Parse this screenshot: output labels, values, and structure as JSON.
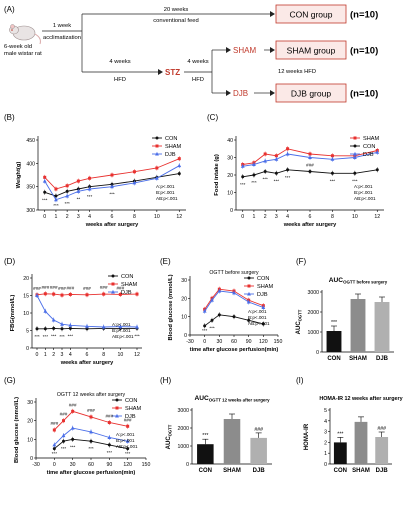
{
  "panel_labels": [
    "(A)",
    "(B)",
    "(C)",
    "(D)",
    "(E)",
    "(F)",
    "(G)",
    "(H)",
    "(I)"
  ],
  "colors": {
    "red": "#e8312f",
    "black": "#111111",
    "blue": "#4a6ee8",
    "bar_black": "#111111",
    "bar_gray_dark": "#8c8c8c",
    "bar_gray_light": "#b0b0b0",
    "box_fill": "#fbe9e7",
    "box_border": "#c0392b",
    "stz": "#c0392b",
    "text_red": "#c0392b"
  },
  "scheme": {
    "rat_label_1": "6-week old",
    "rat_label_2": "male wistar rat",
    "acclim_1": "1 week",
    "acclim_2": "acclimatization",
    "conv_1": "20 weeks",
    "conv_2": "conventional feed",
    "hfd4a_1": "4 weeks",
    "hfd4a_2": "HFD",
    "stz": "STZ",
    "hfd4b_1": "4 weeks",
    "hfd4b_2": "HFD",
    "sham": "SHAM",
    "djb": "DJB",
    "hfd12": "12 weeks HFD",
    "con_group": "CON group",
    "sham_group": "SHAM group",
    "djb_group": "DJB group",
    "n_con": "(n=10)",
    "n_sham": "(n=10)",
    "n_djb": "(n=10)"
  },
  "chart_data": [
    {
      "id": "B",
      "type": "line",
      "xlabel": "weeks after surgery",
      "ylabel": "Weight(g)",
      "x": [
        0,
        1,
        2,
        3,
        4,
        6,
        8,
        10,
        12
      ],
      "xticks": [
        0,
        1,
        2,
        3,
        4,
        6,
        8,
        10,
        12
      ],
      "ylim": [
        300,
        450
      ],
      "yticks": [
        300,
        350,
        400,
        450
      ],
      "series": [
        {
          "name": "CON",
          "color": "#111111",
          "marker": "circle",
          "values": [
            338,
            330,
            340,
            345,
            350,
            355,
            362,
            370,
            378
          ]
        },
        {
          "name": "SHAM",
          "color": "#e8312f",
          "marker": "square",
          "values": [
            370,
            345,
            352,
            362,
            368,
            375,
            382,
            390,
            410
          ]
        },
        {
          "name": "DJB",
          "color": "#4a6ee8",
          "marker": "triangle",
          "values": [
            362,
            322,
            330,
            340,
            345,
            350,
            358,
            368,
            395
          ]
        }
      ],
      "legend": [
        "CON",
        "SHAM",
        "DJB"
      ],
      "stats": [
        "A:p<.001",
        "B:p<.001",
        "AB:p<.001"
      ],
      "annotations": [
        "***",
        "***",
        "***",
        "**",
        "***",
        "***"
      ]
    },
    {
      "id": "C",
      "type": "line",
      "xlabel": "weeks after surgery",
      "ylabel": "Food intake (g)",
      "x": [
        0,
        1,
        2,
        3,
        4,
        6,
        8,
        10,
        12
      ],
      "xticks": [
        0,
        1,
        2,
        3,
        4,
        6,
        8,
        10,
        12
      ],
      "ylim": [
        0,
        40
      ],
      "yticks": [
        0,
        10,
        20,
        30,
        40
      ],
      "series": [
        {
          "name": "SHAM",
          "color": "#e8312f",
          "marker": "square",
          "values": [
            26,
            27,
            32,
            31,
            35,
            32,
            31,
            31,
            34
          ]
        },
        {
          "name": "CON",
          "color": "#111111",
          "marker": "circle",
          "values": [
            19,
            20,
            22,
            21,
            23,
            22,
            21,
            21,
            23
          ]
        },
        {
          "name": "DJB",
          "color": "#4a6ee8",
          "marker": "triangle",
          "values": [
            25,
            26,
            28,
            29,
            32,
            30,
            29,
            30,
            33
          ]
        }
      ],
      "legend": [
        "SHAM",
        "CON",
        "DJB"
      ],
      "stats": [
        "A:p<.001",
        "B:p<.001",
        "AB:p<.001"
      ],
      "annotations": [
        "***",
        "***",
        "***",
        "***",
        "***",
        "###",
        "***",
        "***"
      ]
    },
    {
      "id": "D",
      "type": "line",
      "xlabel": "weeks after surgery",
      "ylabel": "FBG(mmol/L)",
      "x": [
        0,
        1,
        2,
        3,
        4,
        6,
        8,
        10,
        12
      ],
      "xticks": [
        0,
        1,
        2,
        3,
        4,
        6,
        8,
        10,
        12
      ],
      "ylim": [
        0,
        20
      ],
      "yticks": [
        0,
        5,
        10,
        15,
        20
      ],
      "series": [
        {
          "name": "CON",
          "color": "#111111",
          "marker": "circle",
          "values": [
            5.5,
            5.5,
            5.6,
            5.5,
            5.6,
            5.5,
            5.6,
            5.6,
            5.6
          ]
        },
        {
          "name": "SHAM",
          "color": "#e8312f",
          "marker": "square",
          "values": [
            15.2,
            15.5,
            15.4,
            15.1,
            15.3,
            15.2,
            15.4,
            15.3,
            15.4
          ]
        },
        {
          "name": "DJB",
          "color": "#4a6ee8",
          "marker": "triangle",
          "values": [
            15.0,
            10.5,
            8.0,
            6.8,
            6.5,
            6.2,
            6.0,
            6.1,
            6.0
          ]
        }
      ],
      "legend": [
        "CON",
        "SHAM",
        "DJB"
      ],
      "stats": [
        "A:p<.001",
        "B:p<.001",
        "AB:p<.001"
      ],
      "annotations": [
        "###",
        "###",
        "###",
        "###",
        "###",
        "###",
        "###",
        "###",
        "***",
        "***",
        "***",
        "***",
        "***",
        "***"
      ]
    },
    {
      "id": "E",
      "type": "line",
      "title": "OGTT before surgery",
      "xlabel": "time after glucose perfusion(min)",
      "ylabel": "Blood glucose (mmol/L)",
      "x": [
        0,
        15,
        30,
        60,
        90,
        120
      ],
      "xticks": [
        -30,
        0,
        30,
        60,
        90,
        120,
        150
      ],
      "ylim": [
        0,
        30
      ],
      "yticks": [
        0,
        10,
        20,
        30
      ],
      "series": [
        {
          "name": "CON",
          "color": "#111111",
          "marker": "circle",
          "values": [
            5,
            8,
            11,
            10,
            8,
            6
          ]
        },
        {
          "name": "SHAM",
          "color": "#e8312f",
          "marker": "square",
          "values": [
            14,
            20,
            25,
            24,
            19,
            16
          ]
        },
        {
          "name": "DJB",
          "color": "#4a6ee8",
          "marker": "triangle",
          "values": [
            13,
            19,
            24,
            23,
            18,
            15
          ]
        }
      ],
      "legend": [
        "CON",
        "SHAM",
        "DJB"
      ],
      "stats": [
        "A:p<.001",
        "B:p<.001",
        "AB:p<.001"
      ],
      "annotations": [
        "***",
        "***"
      ]
    },
    {
      "id": "F",
      "type": "bar",
      "title": "AUC",
      "title_sub": "OGTT before surgery",
      "ylabel": "AUC",
      "ylabel_sub": "OGTT",
      "categories": [
        "CON",
        "SHAM",
        "DJB"
      ],
      "values": [
        1050,
        2650,
        2500
      ],
      "colors": [
        "#111111",
        "#8c8c8c",
        "#b0b0b0"
      ],
      "ylim": [
        0,
        3000
      ],
      "yticks": [
        0,
        1000,
        2000,
        3000
      ],
      "annotations": [
        "***"
      ]
    },
    {
      "id": "G",
      "type": "line",
      "title": "OGTT 12 weeks after surgery",
      "xlabel": "time after glucose perfusion(min)",
      "ylabel": "Blood glucose (mmol/L)",
      "x": [
        0,
        15,
        30,
        60,
        90,
        120
      ],
      "xticks": [
        -30,
        0,
        30,
        60,
        90,
        120,
        150
      ],
      "ylim": [
        0,
        30
      ],
      "yticks": [
        0,
        10,
        20,
        30
      ],
      "series": [
        {
          "name": "CON",
          "color": "#111111",
          "marker": "circle",
          "values": [
            5,
            9,
            10,
            9,
            7,
            5
          ]
        },
        {
          "name": "SHAM",
          "color": "#e8312f",
          "marker": "square",
          "values": [
            15,
            20,
            25,
            22,
            19,
            17
          ]
        },
        {
          "name": "DJB",
          "color": "#4a6ee8",
          "marker": "triangle",
          "values": [
            7,
            12,
            16,
            14,
            11,
            9
          ]
        }
      ],
      "legend": [
        "CON",
        "SHAM",
        "DJB"
      ],
      "stats": [
        "A:p<.001",
        "B:p<.001",
        "AB:p<.001"
      ],
      "annotations": [
        "###",
        "###",
        "###",
        "###",
        "###",
        "###",
        "***",
        "***",
        "***",
        "***",
        "***",
        "***"
      ]
    },
    {
      "id": "H",
      "type": "bar",
      "title": "AUC",
      "title_sub": "OGTT 12 weeks after surgery",
      "ylabel": "AUC",
      "ylabel_sub": "OGTT",
      "categories": [
        "CON",
        "SHAM",
        "DJB"
      ],
      "values": [
        1100,
        2500,
        1450
      ],
      "colors": [
        "#111111",
        "#8c8c8c",
        "#b0b0b0"
      ],
      "ylim": [
        0,
        3000
      ],
      "yticks": [
        0,
        1000,
        2000,
        3000
      ],
      "annotations": [
        "***",
        "###"
      ]
    },
    {
      "id": "I",
      "type": "bar",
      "title": "HOMA-IR 12 weeks after surgery",
      "ylabel": "HOMA-IR",
      "categories": [
        "CON",
        "SHAM",
        "DJB"
      ],
      "values": [
        2.0,
        3.9,
        2.5
      ],
      "colors": [
        "#111111",
        "#8c8c8c",
        "#b0b0b0"
      ],
      "ylim": [
        0,
        5
      ],
      "yticks": [
        0,
        1,
        2,
        3,
        4,
        5
      ],
      "annotations": [
        "***",
        "###"
      ]
    }
  ]
}
